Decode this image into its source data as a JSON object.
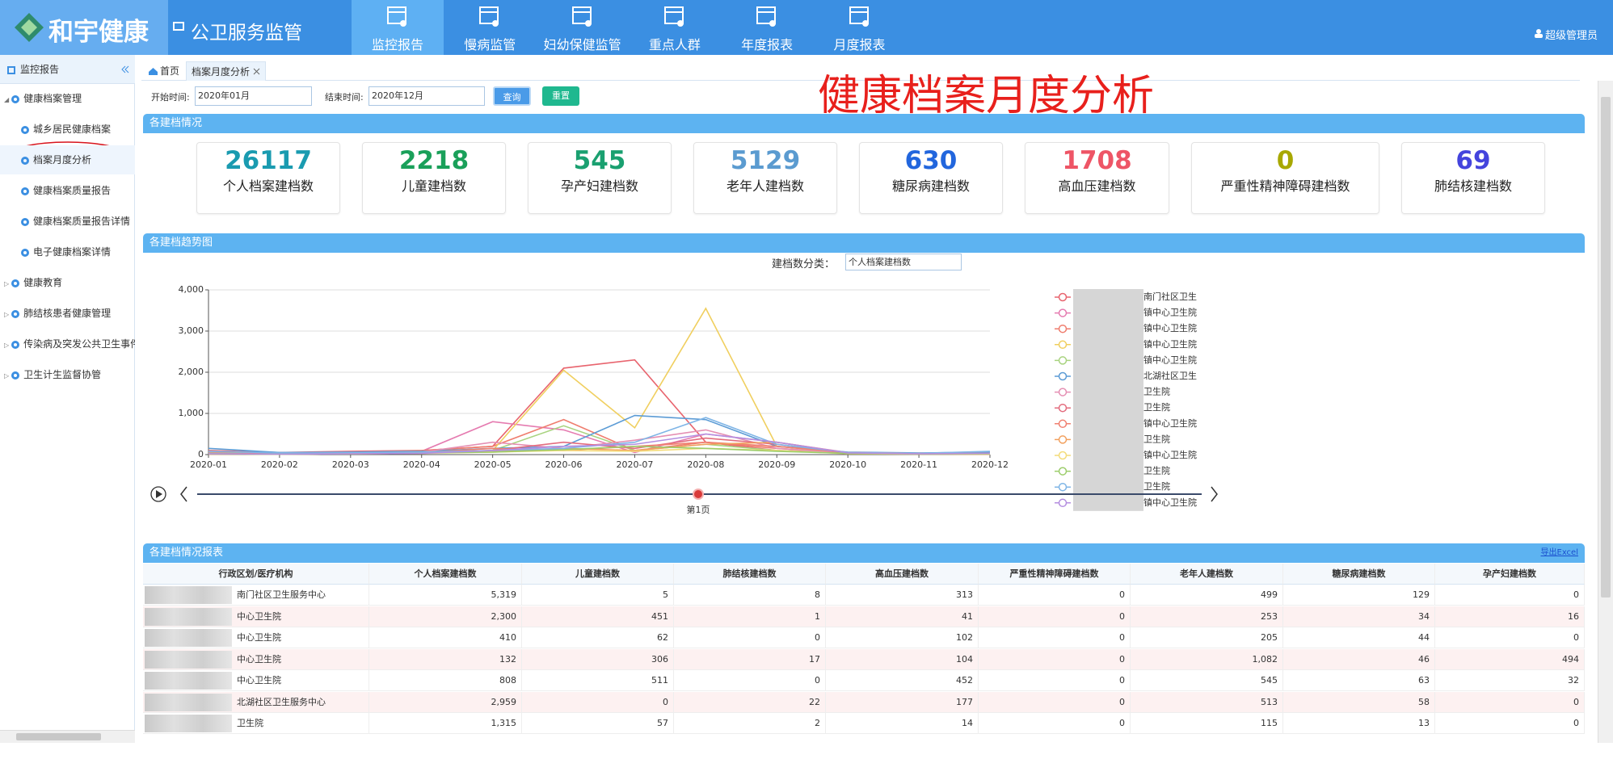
{
  "header": {
    "logo": "和宇健康",
    "system": "公卫服务监管",
    "nav": [
      "监控报告",
      "慢病监管",
      "妇幼保健监管",
      "重点人群",
      "年度报表",
      "月度报表"
    ],
    "user": "超级管理员"
  },
  "sidebar": {
    "title": "监控报告",
    "groups": [
      {
        "label": "健康档案管理",
        "children": [
          "城乡居民健康档案",
          "档案月度分析",
          "健康档案质量报告",
          "健康档案质量报告详情",
          "电子健康档案详情"
        ]
      },
      {
        "label": "健康教育"
      },
      {
        "label": "肺结核患者健康管理"
      },
      {
        "label": "传染病及突发公共卫生事件"
      },
      {
        "label": "卫生计生监督协管"
      }
    ]
  },
  "tabs": [
    "首页",
    "档案月度分析"
  ],
  "page_title": "健康档案月度分析",
  "filters": {
    "start_label": "开始时间:",
    "start_value": "2020年01月",
    "end_label": "结束时间:",
    "end_value": "2020年12月",
    "query": "查询",
    "reset": "重置"
  },
  "summary": {
    "title": "各建档情况",
    "cards": [
      {
        "value": 26117,
        "label": "个人档案建档数",
        "color": "#1a9bb0"
      },
      {
        "value": 2218,
        "label": "儿童建档数",
        "color": "#1aa05a"
      },
      {
        "value": 545,
        "label": "孕产妇建档数",
        "color": "#1aa070"
      },
      {
        "value": 5129,
        "label": "老年人建档数",
        "color": "#5b9bd0"
      },
      {
        "value": 630,
        "label": "糖尿病建档数",
        "color": "#2266dd"
      },
      {
        "value": 1708,
        "label": "高血压建档数",
        "color": "#ee5566"
      },
      {
        "value": 0,
        "label": "严重性精神障碍建档数",
        "color": "#a8a800"
      },
      {
        "value": 69,
        "label": "肺结核建档数",
        "color": "#4444dd"
      }
    ]
  },
  "chart_data": {
    "type": "line",
    "title": "各建档趋势图",
    "filter_label": "建档数分类：",
    "filter_value": "个人档案建档数",
    "page_label": "第1页",
    "categories": [
      "2020-01",
      "2020-02",
      "2020-03",
      "2020-04",
      "2020-05",
      "2020-06",
      "2020-07",
      "2020-08",
      "2020-09",
      "2020-10",
      "2020-11",
      "2020-12"
    ],
    "ylim": [
      0,
      4000
    ],
    "yticks": [
      0,
      {
        "value": 1000,
        "label": "1,000"
      },
      {
        "value": 2000,
        "label": "2,000"
      },
      {
        "value": 3000,
        "label": "3,000"
      },
      {
        "value": 4000,
        "label": "4,000"
      }
    ],
    "grid": true,
    "series": [
      {
        "name": "南门社区卫生",
        "color": "#e8646e",
        "values": [
          100,
          50,
          80,
          100,
          200,
          2100,
          2300,
          300,
          100,
          50,
          30,
          20
        ]
      },
      {
        "name": "镇中心卫生院",
        "color": "#e57bb0",
        "values": [
          50,
          30,
          60,
          80,
          800,
          600,
          50,
          500,
          300,
          50,
          30,
          20
        ]
      },
      {
        "name": "镇中心卫生院",
        "color": "#ef7d6e",
        "values": [
          30,
          20,
          50,
          100,
          200,
          850,
          100,
          300,
          150,
          40,
          20,
          10
        ]
      },
      {
        "name": "镇中心卫生院",
        "color": "#f0cf5f",
        "values": [
          20,
          10,
          30,
          50,
          100,
          2050,
          650,
          3550,
          200,
          30,
          20,
          30
        ]
      },
      {
        "name": "镇中心卫生院",
        "color": "#a8d37f",
        "values": [
          40,
          20,
          40,
          60,
          100,
          700,
          100,
          250,
          100,
          30,
          20,
          40
        ]
      },
      {
        "name": "北湖社区卫生",
        "color": "#5b9bd5",
        "values": [
          150,
          50,
          60,
          80,
          150,
          200,
          950,
          850,
          200,
          60,
          40,
          60
        ]
      },
      {
        "name": "卫生院",
        "color": "#e58fb3",
        "values": [
          20,
          30,
          40,
          60,
          300,
          150,
          350,
          600,
          150,
          40,
          30,
          20
        ]
      },
      {
        "name": "卫生院",
        "color": "#e36c7e",
        "values": [
          10,
          20,
          30,
          40,
          100,
          300,
          150,
          400,
          250,
          30,
          20,
          10
        ]
      },
      {
        "name": "镇中心卫生院",
        "color": "#f08070",
        "values": [
          30,
          20,
          40,
          50,
          150,
          100,
          200,
          300,
          200,
          50,
          30,
          20
        ]
      },
      {
        "name": "卫生院",
        "color": "#f2a15f",
        "values": [
          20,
          10,
          20,
          30,
          80,
          150,
          100,
          250,
          300,
          40,
          20,
          30
        ]
      },
      {
        "name": "镇中心卫生院",
        "color": "#f4dc7a",
        "values": [
          10,
          10,
          20,
          30,
          60,
          100,
          80,
          150,
          100,
          20,
          10,
          10
        ]
      },
      {
        "name": "卫生院",
        "color": "#9ccd6b",
        "values": [
          20,
          10,
          20,
          40,
          60,
          120,
          200,
          150,
          80,
          30,
          20,
          20
        ]
      },
      {
        "name": "卫生院",
        "color": "#7fb5e6",
        "values": [
          80,
          40,
          50,
          60,
          100,
          150,
          300,
          900,
          250,
          50,
          30,
          80
        ]
      },
      {
        "name": "镇中心卫生院",
        "color": "#b48ee0",
        "values": [
          20,
          10,
          20,
          30,
          100,
          200,
          250,
          500,
          300,
          40,
          20,
          30
        ]
      }
    ]
  },
  "table": {
    "title": "各建档情况报表",
    "export": "导出Excel",
    "columns": [
      "行政区划/医疗机构",
      "个人档案建档数",
      "儿童建档数",
      "肺结核建档数",
      "高血压建档数",
      "严重性精神障碍建档数",
      "老年人建档数",
      "糖尿病建档数",
      "孕产妇建档数"
    ],
    "rows": [
      [
        "南门社区卫生服务中心",
        "5,319",
        "5",
        "8",
        "313",
        "0",
        "499",
        "129",
        "0"
      ],
      [
        "中心卫生院",
        "2,300",
        "451",
        "1",
        "41",
        "0",
        "253",
        "34",
        "16"
      ],
      [
        "中心卫生院",
        "410",
        "62",
        "0",
        "102",
        "0",
        "205",
        "44",
        "0"
      ],
      [
        "中心卫生院",
        "132",
        "306",
        "17",
        "104",
        "0",
        "1,082",
        "46",
        "494"
      ],
      [
        "中心卫生院",
        "808",
        "511",
        "0",
        "452",
        "0",
        "545",
        "63",
        "32"
      ],
      [
        "北湖社区卫生服务中心",
        "2,959",
        "0",
        "22",
        "177",
        "0",
        "513",
        "58",
        "0"
      ],
      [
        "卫生院",
        "1,315",
        "57",
        "2",
        "14",
        "0",
        "115",
        "13",
        "0"
      ]
    ]
  }
}
